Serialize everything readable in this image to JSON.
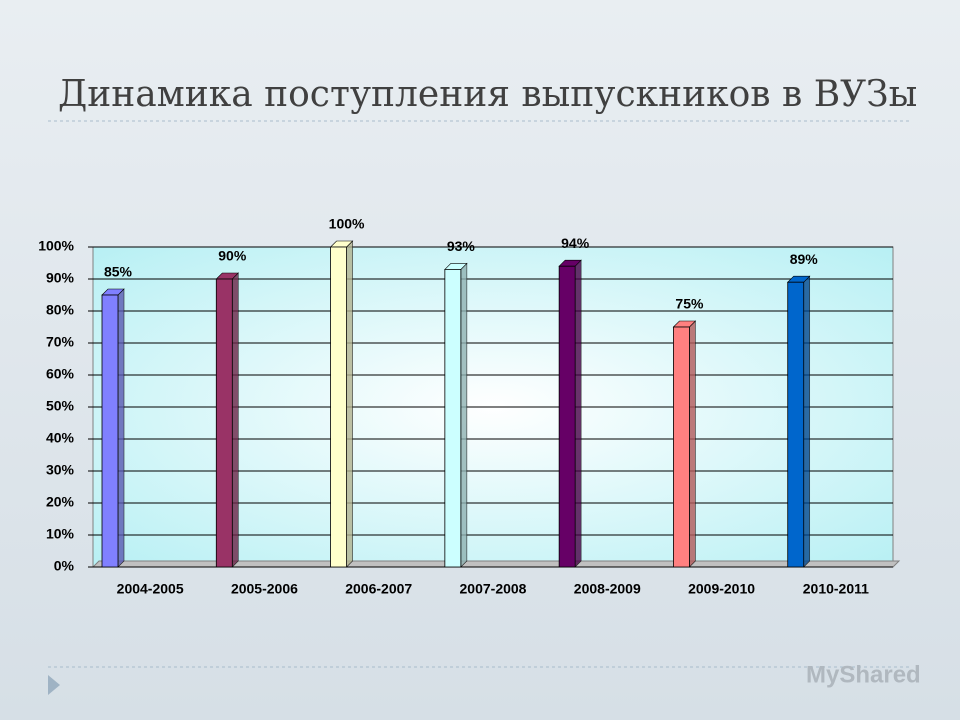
{
  "title": "Динамика поступления выпускников в ВУЗы",
  "watermark": "MyShared",
  "chart_data": {
    "type": "bar",
    "categories": [
      "2004-2005",
      "2005-2006",
      "2006-2007",
      "2007-2008",
      "2008-2009",
      "2009-2010",
      "2010-2011"
    ],
    "values": [
      85,
      90,
      100,
      93,
      94,
      75,
      89
    ],
    "value_labels": [
      "85%",
      "90%",
      "100%",
      "93%",
      "94%",
      "75%",
      "89%"
    ],
    "colors": [
      "#8080ff",
      "#993366",
      "#ffffcc",
      "#ccffff",
      "#660066",
      "#ff8080",
      "#0066cc"
    ],
    "ylim": [
      0,
      100
    ],
    "yticks": [
      {
        "value": 0,
        "label": "0%"
      },
      {
        "value": 10,
        "label": "10%"
      },
      {
        "value": 20,
        "label": "20%"
      },
      {
        "value": 30,
        "label": "30%"
      },
      {
        "value": 40,
        "label": "40%"
      },
      {
        "value": 50,
        "label": "50%"
      },
      {
        "value": 60,
        "label": "60%"
      },
      {
        "value": 70,
        "label": "70%"
      },
      {
        "value": 80,
        "label": "80%"
      },
      {
        "value": 90,
        "label": "90%"
      },
      {
        "value": 100,
        "label": "100%"
      }
    ],
    "grid": true
  }
}
